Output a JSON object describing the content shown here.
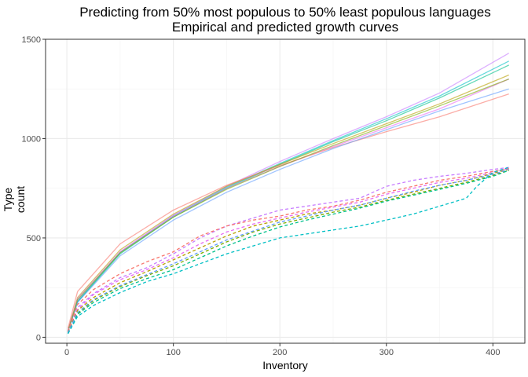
{
  "chart_data": {
    "type": "line",
    "title": "Predicting from 50% most populous to 50% least populous languages",
    "subtitle": "Empirical and predicted growth curves",
    "xlabel": "Inventory",
    "ylabel": "Type count",
    "xlim": [
      -20,
      430
    ],
    "ylim": [
      -30,
      1500
    ],
    "x_ticks": [
      0,
      100,
      200,
      300,
      400
    ],
    "y_ticks": [
      0,
      500,
      1000,
      1500
    ],
    "x_tick_labels": [
      "0",
      "100",
      "200",
      "300",
      "400"
    ],
    "y_tick_labels": [
      "0",
      "500",
      "1000",
      "1500"
    ],
    "grid": true,
    "legend": "none",
    "predicted_series": [
      {
        "color": "#C77CFF",
        "style": "solid",
        "x": [
          1,
          10,
          50,
          100,
          150,
          200,
          250,
          300,
          350,
          415
        ],
        "y": [
          30,
          185,
          430,
          615,
          760,
          885,
          1000,
          1110,
          1230,
          1430
        ]
      },
      {
        "color": "#00BFC4",
        "style": "solid",
        "x": [
          1,
          10,
          50,
          100,
          150,
          200,
          250,
          300,
          350,
          415
        ],
        "y": [
          30,
          180,
          425,
          610,
          755,
          875,
          990,
          1100,
          1215,
          1390
        ]
      },
      {
        "color": "#00C08B",
        "style": "solid",
        "x": [
          1,
          10,
          50,
          100,
          150,
          200,
          250,
          300,
          350,
          415
        ],
        "y": [
          30,
          178,
          420,
          605,
          750,
          870,
          985,
          1090,
          1205,
          1370
        ]
      },
      {
        "color": "#B79F00",
        "style": "solid",
        "x": [
          1,
          10,
          50,
          100,
          150,
          200,
          250,
          300,
          350,
          415
        ],
        "y": [
          32,
          200,
          440,
          620,
          760,
          870,
          975,
          1075,
          1175,
          1320
        ]
      },
      {
        "color": "#E76BF3",
        "style": "solid",
        "x": [
          1,
          10,
          50,
          100,
          150,
          200,
          250,
          300,
          350,
          415
        ],
        "y": [
          35,
          195,
          430,
          610,
          750,
          860,
          960,
          1055,
          1150,
          1300
        ]
      },
      {
        "color": "#F8766D",
        "style": "solid",
        "x": [
          1,
          10,
          50,
          100,
          150,
          200,
          250,
          300,
          350,
          415
        ],
        "y": [
          45,
          230,
          470,
          640,
          765,
          865,
          955,
          1035,
          1110,
          1225
        ]
      },
      {
        "color": "#619CFF",
        "style": "solid",
        "x": [
          1,
          10,
          50,
          100,
          150,
          200,
          250,
          300,
          350,
          415
        ],
        "y": [
          28,
          175,
          410,
          590,
          730,
          845,
          950,
          1045,
          1140,
          1250
        ]
      },
      {
        "color": "#7CAE00",
        "style": "solid",
        "x": [
          1,
          10,
          50,
          100,
          150,
          200,
          250,
          300,
          350,
          415
        ],
        "y": [
          30,
          190,
          425,
          605,
          745,
          860,
          965,
          1065,
          1165,
          1300
        ]
      }
    ],
    "empirical_series": [
      {
        "color": "#C77CFF",
        "style": "dashed",
        "x": [
          1,
          10,
          25,
          50,
          75,
          100,
          125,
          150,
          175,
          200,
          225,
          250,
          275,
          300,
          325,
          350,
          375,
          400,
          415
        ],
        "y": [
          25,
          150,
          220,
          300,
          350,
          420,
          500,
          560,
          600,
          640,
          660,
          680,
          700,
          760,
          790,
          810,
          825,
          845,
          855
        ]
      },
      {
        "color": "#F8766D",
        "style": "dashed",
        "x": [
          1,
          10,
          25,
          50,
          75,
          100,
          125,
          150,
          175,
          200,
          225,
          250,
          275,
          300,
          325,
          350,
          375,
          400,
          415
        ],
        "y": [
          30,
          165,
          240,
          320,
          380,
          430,
          510,
          560,
          590,
          610,
          640,
          660,
          690,
          730,
          760,
          790,
          810,
          835,
          850
        ]
      },
      {
        "color": "#E76BF3",
        "style": "dashed",
        "x": [
          1,
          10,
          25,
          50,
          75,
          100,
          125,
          150,
          175,
          200,
          225,
          250,
          275,
          300,
          325,
          350,
          375,
          400,
          415
        ],
        "y": [
          28,
          140,
          215,
          290,
          340,
          400,
          470,
          530,
          570,
          600,
          630,
          655,
          680,
          720,
          750,
          780,
          800,
          830,
          850
        ]
      },
      {
        "color": "#B79F00",
        "style": "dashed",
        "x": [
          1,
          10,
          25,
          50,
          75,
          100,
          125,
          150,
          175,
          200,
          225,
          250,
          275,
          300,
          325,
          350,
          375,
          400,
          415
        ],
        "y": [
          25,
          135,
          200,
          275,
          330,
          390,
          450,
          510,
          560,
          590,
          620,
          640,
          665,
          700,
          730,
          765,
          790,
          825,
          845
        ]
      },
      {
        "color": "#7CAE00",
        "style": "dashed",
        "x": [
          1,
          10,
          25,
          50,
          75,
          100,
          125,
          150,
          175,
          200,
          225,
          250,
          275,
          300,
          325,
          350,
          375,
          400,
          415
        ],
        "y": [
          22,
          120,
          185,
          255,
          310,
          360,
          420,
          480,
          530,
          570,
          600,
          630,
          655,
          690,
          720,
          750,
          780,
          815,
          840
        ]
      },
      {
        "color": "#00C08B",
        "style": "dashed",
        "x": [
          1,
          10,
          25,
          50,
          75,
          100,
          125,
          150,
          175,
          200,
          225,
          250,
          275,
          300,
          325,
          350,
          375,
          400,
          415
        ],
        "y": [
          20,
          115,
          175,
          245,
          295,
          340,
          400,
          460,
          510,
          555,
          590,
          620,
          650,
          685,
          715,
          745,
          775,
          810,
          840
        ]
      },
      {
        "color": "#619CFF",
        "style": "dashed",
        "x": [
          1,
          10,
          25,
          50,
          75,
          100,
          125,
          150,
          175,
          200,
          225,
          250,
          275,
          300,
          325,
          350,
          375,
          400,
          415
        ],
        "y": [
          22,
          125,
          190,
          260,
          315,
          370,
          430,
          490,
          535,
          580,
          610,
          640,
          665,
          700,
          735,
          765,
          790,
          820,
          845
        ]
      },
      {
        "color": "#00BFC4",
        "style": "dashed",
        "x": [
          1,
          10,
          25,
          50,
          75,
          100,
          125,
          150,
          175,
          200,
          225,
          250,
          275,
          300,
          325,
          350,
          375,
          385,
          400,
          415
        ],
        "y": [
          18,
          105,
          160,
          225,
          280,
          320,
          370,
          420,
          460,
          500,
          520,
          540,
          560,
          590,
          620,
          660,
          700,
          760,
          830,
          855
        ]
      }
    ]
  }
}
